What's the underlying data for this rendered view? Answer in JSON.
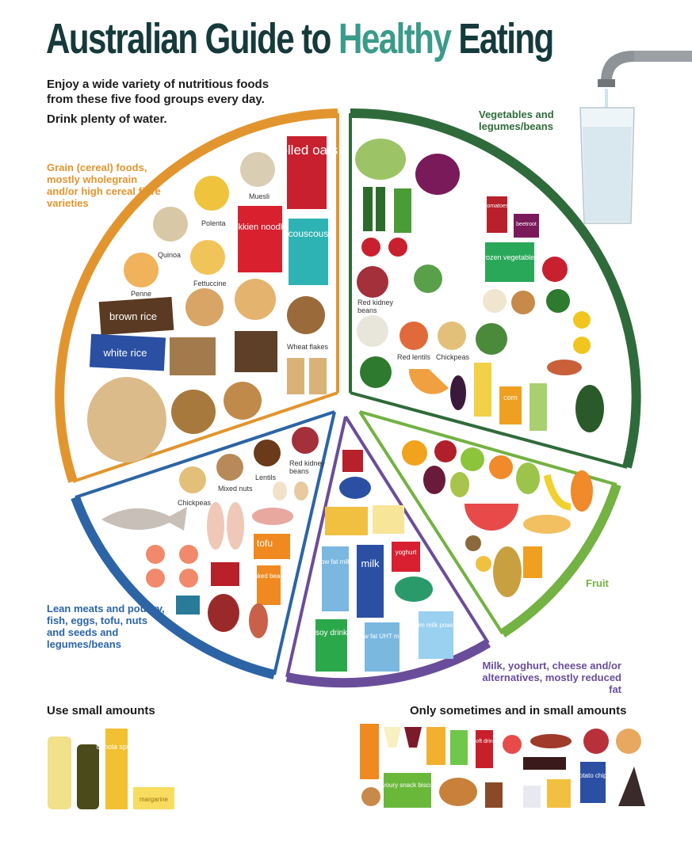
{
  "title": {
    "part1": "Australian Guide to ",
    "part2": "Healthy",
    "part3": " Eating"
  },
  "intro": {
    "line1": "Enjoy a wide variety of nutritious foods",
    "line2": "from these five food groups every day.",
    "water": "Drink plenty of water."
  },
  "groups": {
    "grain": "Grain (cereal) foods, mostly wholegrain and/or high cereal fibre varieties",
    "vegetables": "Vegetables and legumes/beans",
    "fruit": "Fruit",
    "dairy": "Milk, yoghurt, cheese and/or alternatives, mostly reduced fat",
    "meat": "Lean meats and poultry, fish, eggs, tofu, nuts and seeds and legumes/beans"
  },
  "colors": {
    "grain": "#e2952e",
    "vegetables": "#2f6b3a",
    "fruit": "#73b243",
    "dairy": "#6a4d9a",
    "meat": "#2c64a6",
    "title_dark": "#163a3c",
    "title_accent": "#3a9b8a"
  },
  "food_labels": {
    "muesli": "Muesli",
    "polenta": "Polenta",
    "quinoa": "Quinoa",
    "fettuccine": "Fettuccine",
    "penne": "Penne",
    "wheat_flakes": "Wheat flakes",
    "red_kidney_beans_veg": "Red kidney beans",
    "red_lentils": "Red lentils",
    "chickpeas_veg": "Chickpeas",
    "lentils": "Lentils",
    "red_kidney_beans_meat": "Red kidney beans",
    "mixed_nuts": "Mixed nuts",
    "chickpeas_meat": "Chickpeas"
  },
  "package_text": {
    "rolled_oats": "rolled oats",
    "hokkien_noodles": "hokkien noodles",
    "couscous": "couscous",
    "brown_rice": "brown rice",
    "white_rice": "white rice",
    "tomatoes": "tomatoes",
    "beetroot": "beetroot",
    "frozen_vegetables": "frozen vegetables",
    "corn": "corn",
    "tofu": "tofu",
    "baked_beans": "baked beans",
    "low_fat_milk": "low fat milk",
    "milk": "milk",
    "yoghurt": "yoghurt",
    "soy_drink": "soy drink",
    "low_fat_uht_milk": "low fat UHT milk",
    "skim_milk_powder": "skim milk powder",
    "canola_spray": "canola spray",
    "margarine": "margarine",
    "soft_drink": "soft drink",
    "savoury_snack_biscuits": "savoury snack biscuits",
    "potato_chips": "potato chips"
  },
  "bottom": {
    "small_amounts": "Use small amounts",
    "sometimes": "Only sometimes and in small amounts"
  }
}
